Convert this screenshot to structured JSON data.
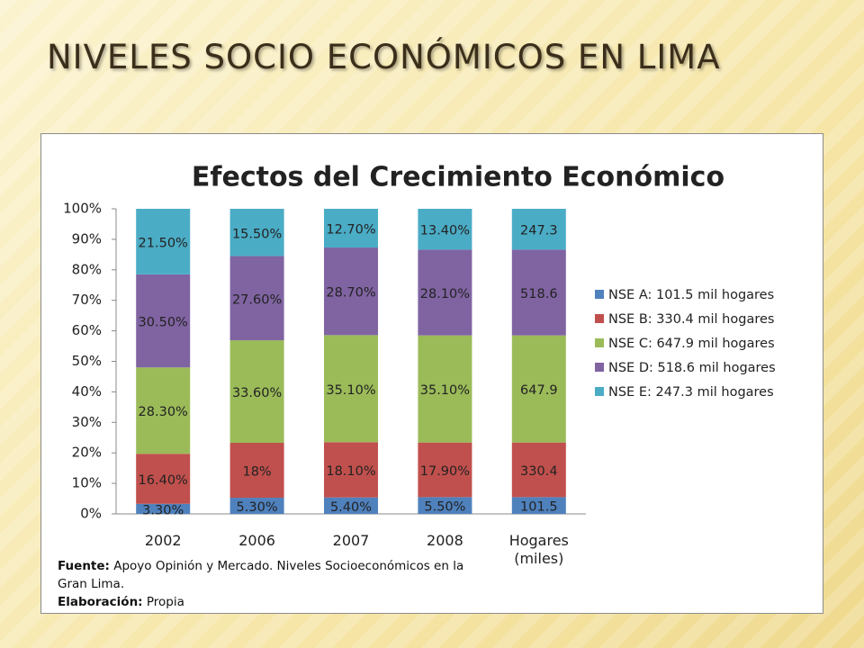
{
  "slide_title": "NIVELES SOCIO ECONÓMICOS EN LIMA",
  "chart_data": {
    "type": "stacked_percent_bar",
    "title": "Efectos del Crecimiento Económico",
    "categories": [
      "2002",
      "2006",
      "2007",
      "2008",
      "Hogares (miles)"
    ],
    "series": [
      {
        "name": "NSE A: 101.5 mil hogares",
        "color": "#4f81bd",
        "values": [
          3.3,
          5.3,
          5.4,
          5.5,
          101.5
        ],
        "value_labels": [
          "3.30%",
          "5.30%",
          "5.40%",
          "5.50%",
          "101.5"
        ]
      },
      {
        "name": "NSE B: 330.4 mil hogares",
        "color": "#c0504d",
        "values": [
          16.4,
          18,
          18.1,
          17.9,
          330.4
        ],
        "value_labels": [
          "16.40%",
          "18%",
          "18.10%",
          "17.90%",
          "330.4"
        ]
      },
      {
        "name": "NSE C: 647.9 mil hogares",
        "color": "#9bbb59",
        "values": [
          28.3,
          33.6,
          35.1,
          35.1,
          647.9
        ],
        "value_labels": [
          "28.30%",
          "33.60%",
          "35.10%",
          "35.10%",
          "647.9"
        ]
      },
      {
        "name": "NSE D: 518.6 mil hogares",
        "color": "#8064a2",
        "values": [
          30.5,
          27.6,
          28.7,
          28.1,
          518.6
        ],
        "value_labels": [
          "30.50%",
          "27.60%",
          "28.70%",
          "28.10%",
          "518.6"
        ]
      },
      {
        "name": "NSE E: 247.3 mil hogares",
        "color": "#4bacc6",
        "values": [
          21.5,
          15.5,
          12.7,
          13.4,
          247.3
        ],
        "value_labels": [
          "21.50%",
          "15.50%",
          "12.70%",
          "13.40%",
          "247.3"
        ]
      }
    ],
    "ylim": [
      0,
      100
    ],
    "yticks": [
      {
        "value": 0,
        "label": "0%"
      },
      {
        "value": 10,
        "label": "10%"
      },
      {
        "value": 20,
        "label": "20%"
      },
      {
        "value": 30,
        "label": "30%"
      },
      {
        "value": 40,
        "label": "40%"
      },
      {
        "value": 50,
        "label": "50%"
      },
      {
        "value": 60,
        "label": "60%"
      },
      {
        "value": 70,
        "label": "70%"
      },
      {
        "value": 80,
        "label": "80%"
      },
      {
        "value": 90,
        "label": "90%"
      },
      {
        "value": 100,
        "label": "100%"
      }
    ],
    "legend": "right",
    "source": {
      "label": "Fuente:",
      "text": "Apoyo Opinión y Mercado.  Niveles Socioeconómicos en la Gran Lima."
    },
    "credit": {
      "label": "Elaboración:",
      "text": "Propia"
    }
  }
}
